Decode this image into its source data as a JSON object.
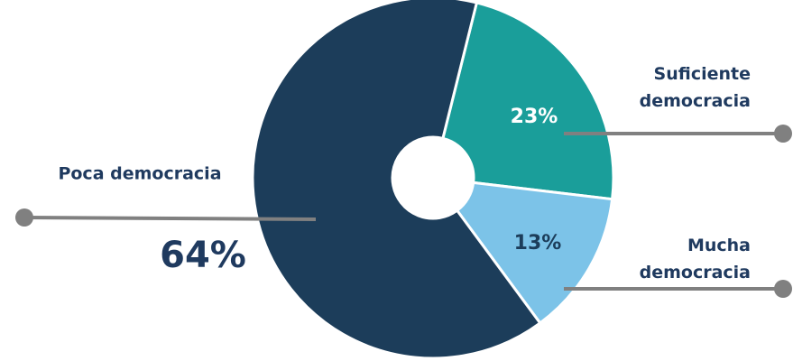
{
  "chart_data": {
    "type": "donut",
    "categories": [
      "Suficiente democracia",
      "Mucha democracia",
      "Poca democracia"
    ],
    "values": [
      23,
      13,
      64
    ],
    "value_labels": [
      "23%",
      "13%",
      "64%"
    ],
    "colors": [
      "#1a9e9a",
      "#7cc3e8",
      "#1c3d5a"
    ]
  }
}
